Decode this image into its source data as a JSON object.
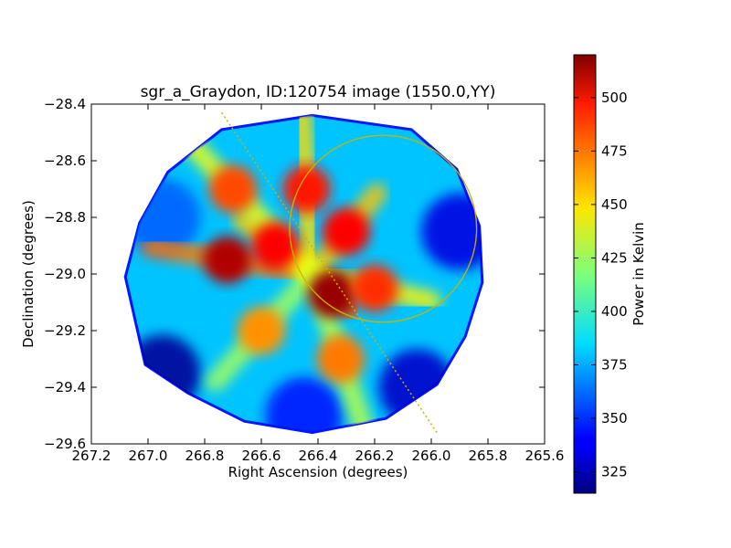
{
  "chart_data": {
    "type": "heatmap",
    "title": "sgr_a_Graydon, ID:120754 image (1550.0,YY)",
    "xlabel": "Right Ascension (degrees)",
    "ylabel": "Declination (degrees)",
    "xlim": [
      267.2,
      265.6
    ],
    "ylim": [
      -29.6,
      -28.4
    ],
    "x_ticks": [
      "267.2",
      "267.0",
      "266.8",
      "266.6",
      "266.4",
      "266.2",
      "266.0",
      "265.8",
      "265.6"
    ],
    "y_ticks": [
      "−28.4",
      "−28.6",
      "−28.8",
      "−29.0",
      "−29.2",
      "−29.4",
      "−29.6"
    ],
    "x_tick_values": [
      267.2,
      267.0,
      266.8,
      266.6,
      266.4,
      266.2,
      266.0,
      265.8,
      265.6
    ],
    "y_tick_values": [
      -28.4,
      -28.6,
      -28.8,
      -29.0,
      -29.2,
      -29.4,
      -29.6
    ],
    "colorbar": {
      "label": "Power in Kelvin",
      "range": [
        315,
        520
      ],
      "ticks": [
        "325",
        "350",
        "375",
        "400",
        "425",
        "450",
        "475",
        "500"
      ],
      "tick_values": [
        325,
        350,
        375,
        400,
        425,
        450,
        475,
        500
      ],
      "colormap": "jet"
    },
    "field_boundary": [
      [
        266.74,
        -28.49
      ],
      [
        266.42,
        -28.44
      ],
      [
        266.07,
        -28.49
      ],
      [
        265.91,
        -28.63
      ],
      [
        265.83,
        -28.83
      ],
      [
        265.82,
        -29.03
      ],
      [
        265.88,
        -29.22
      ],
      [
        265.98,
        -29.39
      ],
      [
        266.16,
        -29.51
      ],
      [
        266.42,
        -29.56
      ],
      [
        266.66,
        -29.52
      ],
      [
        266.86,
        -29.42
      ],
      [
        267.01,
        -29.32
      ],
      [
        267.08,
        -29.01
      ],
      [
        267.03,
        -28.82
      ],
      [
        266.93,
        -28.64
      ]
    ],
    "peak_regions": [
      {
        "ra": 266.72,
        "dec": -28.95,
        "value": 510
      },
      {
        "ra": 266.55,
        "dec": -28.9,
        "value": 495
      },
      {
        "ra": 266.44,
        "dec": -28.7,
        "value": 490
      },
      {
        "ra": 266.35,
        "dec": -29.07,
        "value": 515
      },
      {
        "ra": 266.3,
        "dec": -28.85,
        "value": 495
      },
      {
        "ra": 266.2,
        "dec": -29.05,
        "value": 485
      },
      {
        "ra": 266.32,
        "dec": -29.3,
        "value": 470
      },
      {
        "ra": 266.6,
        "dec": -29.2,
        "value": 465
      },
      {
        "ra": 266.7,
        "dec": -28.7,
        "value": 480
      }
    ],
    "low_regions": [
      {
        "ra": 265.9,
        "dec": -28.85,
        "value": 335
      },
      {
        "ra": 266.05,
        "dec": -29.4,
        "value": 330
      },
      {
        "ra": 266.95,
        "dec": -29.35,
        "value": 320
      },
      {
        "ra": 266.95,
        "dec": -28.8,
        "value": 360
      },
      {
        "ra": 266.45,
        "dec": -29.5,
        "value": 345
      }
    ],
    "overlay_circle": {
      "center_ra": 266.17,
      "center_dec": -28.84,
      "radius_deg": 0.33,
      "color": "#c8b400"
    },
    "overlay_line": {
      "start": [
        266.74,
        -28.43
      ],
      "end": [
        265.98,
        -29.56
      ],
      "style": "dotted",
      "color": "#c8b400"
    }
  }
}
